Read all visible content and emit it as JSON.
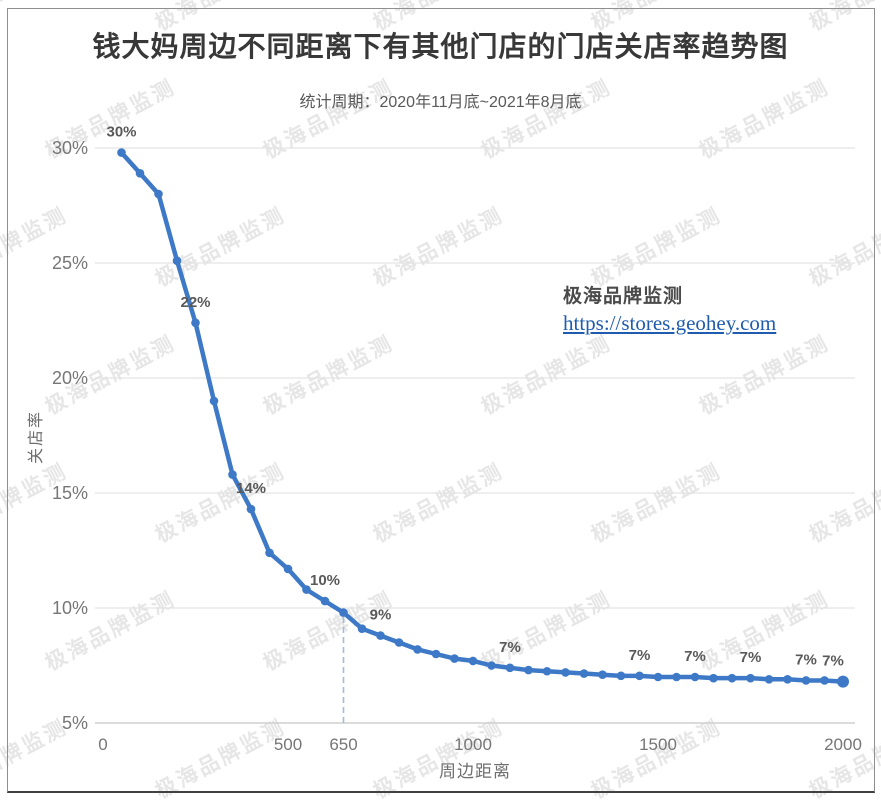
{
  "header": {
    "title": "钱大妈周边不同距离下有其他门店的门店关店率趋势图",
    "subtitle": "统计周期：2020年11月底~2021年8月底"
  },
  "annotation": {
    "brand": "极海品牌监测",
    "link_text": "https://stores.geohey.com",
    "link_href": "https://stores.geohey.com"
  },
  "watermark_text": "极海品牌监测",
  "theme": {
    "title_color": "#383838",
    "subtitle_color": "#595959",
    "link_color": "#1F5CB0",
    "frame_border_color": "#8F8F8F",
    "watermark_color": "rgba(80,80,80,0.14)"
  },
  "chart_data": {
    "type": "line",
    "title": "钱大妈周边不同距离下有其他门店的门店关店率趋势图",
    "subtitle": "统计周期：2020年11月底~2021年8月底",
    "xlabel": "周边距离",
    "ylabel": "关店率",
    "grid": true,
    "legend": "none",
    "xlim": [
      0,
      2030
    ],
    "ylim": [
      5,
      30
    ],
    "x_ticks": [
      0,
      500,
      650,
      1000,
      1500,
      2000
    ],
    "y_ticks": [
      30,
      25,
      20,
      15,
      10,
      5
    ],
    "y_tick_suffix": "%",
    "reference_line_x": 650,
    "x": [
      50,
      100,
      150,
      200,
      250,
      300,
      350,
      400,
      450,
      500,
      550,
      600,
      650,
      700,
      750,
      800,
      850,
      900,
      950,
      1000,
      1050,
      1100,
      1150,
      1200,
      1250,
      1300,
      1350,
      1400,
      1450,
      1500,
      1550,
      1600,
      1650,
      1700,
      1750,
      1800,
      1850,
      1900,
      1950,
      2000
    ],
    "y": [
      29.8,
      28.9,
      28.0,
      25.1,
      22.4,
      19.0,
      15.8,
      14.3,
      12.4,
      11.7,
      10.8,
      10.3,
      9.8,
      9.1,
      8.8,
      8.5,
      8.2,
      8.0,
      7.8,
      7.7,
      7.5,
      7.4,
      7.3,
      7.25,
      7.2,
      7.15,
      7.1,
      7.05,
      7.05,
      7.0,
      7.0,
      7.0,
      6.95,
      6.95,
      6.95,
      6.9,
      6.9,
      6.85,
      6.85,
      6.8
    ],
    "point_labels": [
      {
        "x": 50,
        "label": "30%"
      },
      {
        "x": 250,
        "label": "22%"
      },
      {
        "x": 400,
        "label": "14%"
      },
      {
        "x": 600,
        "label": "10%"
      },
      {
        "x": 750,
        "label": "9%"
      },
      {
        "x": 1100,
        "label": "7%"
      },
      {
        "x": 1450,
        "label": "7%"
      },
      {
        "x": 1600,
        "label": "7%"
      },
      {
        "x": 1750,
        "label": "7%"
      },
      {
        "x": 1900,
        "label": "7%"
      },
      {
        "x": 2000,
        "label": "7%",
        "dx": -10
      }
    ],
    "colors": {
      "line": "#3D79C6",
      "marker": "#3D79C6",
      "grid": "#E3E3E3",
      "axis_line": "#CFCFCF",
      "tick_text": "#767676",
      "data_label": "#595959",
      "reference_line": "#A4BBD4"
    }
  }
}
